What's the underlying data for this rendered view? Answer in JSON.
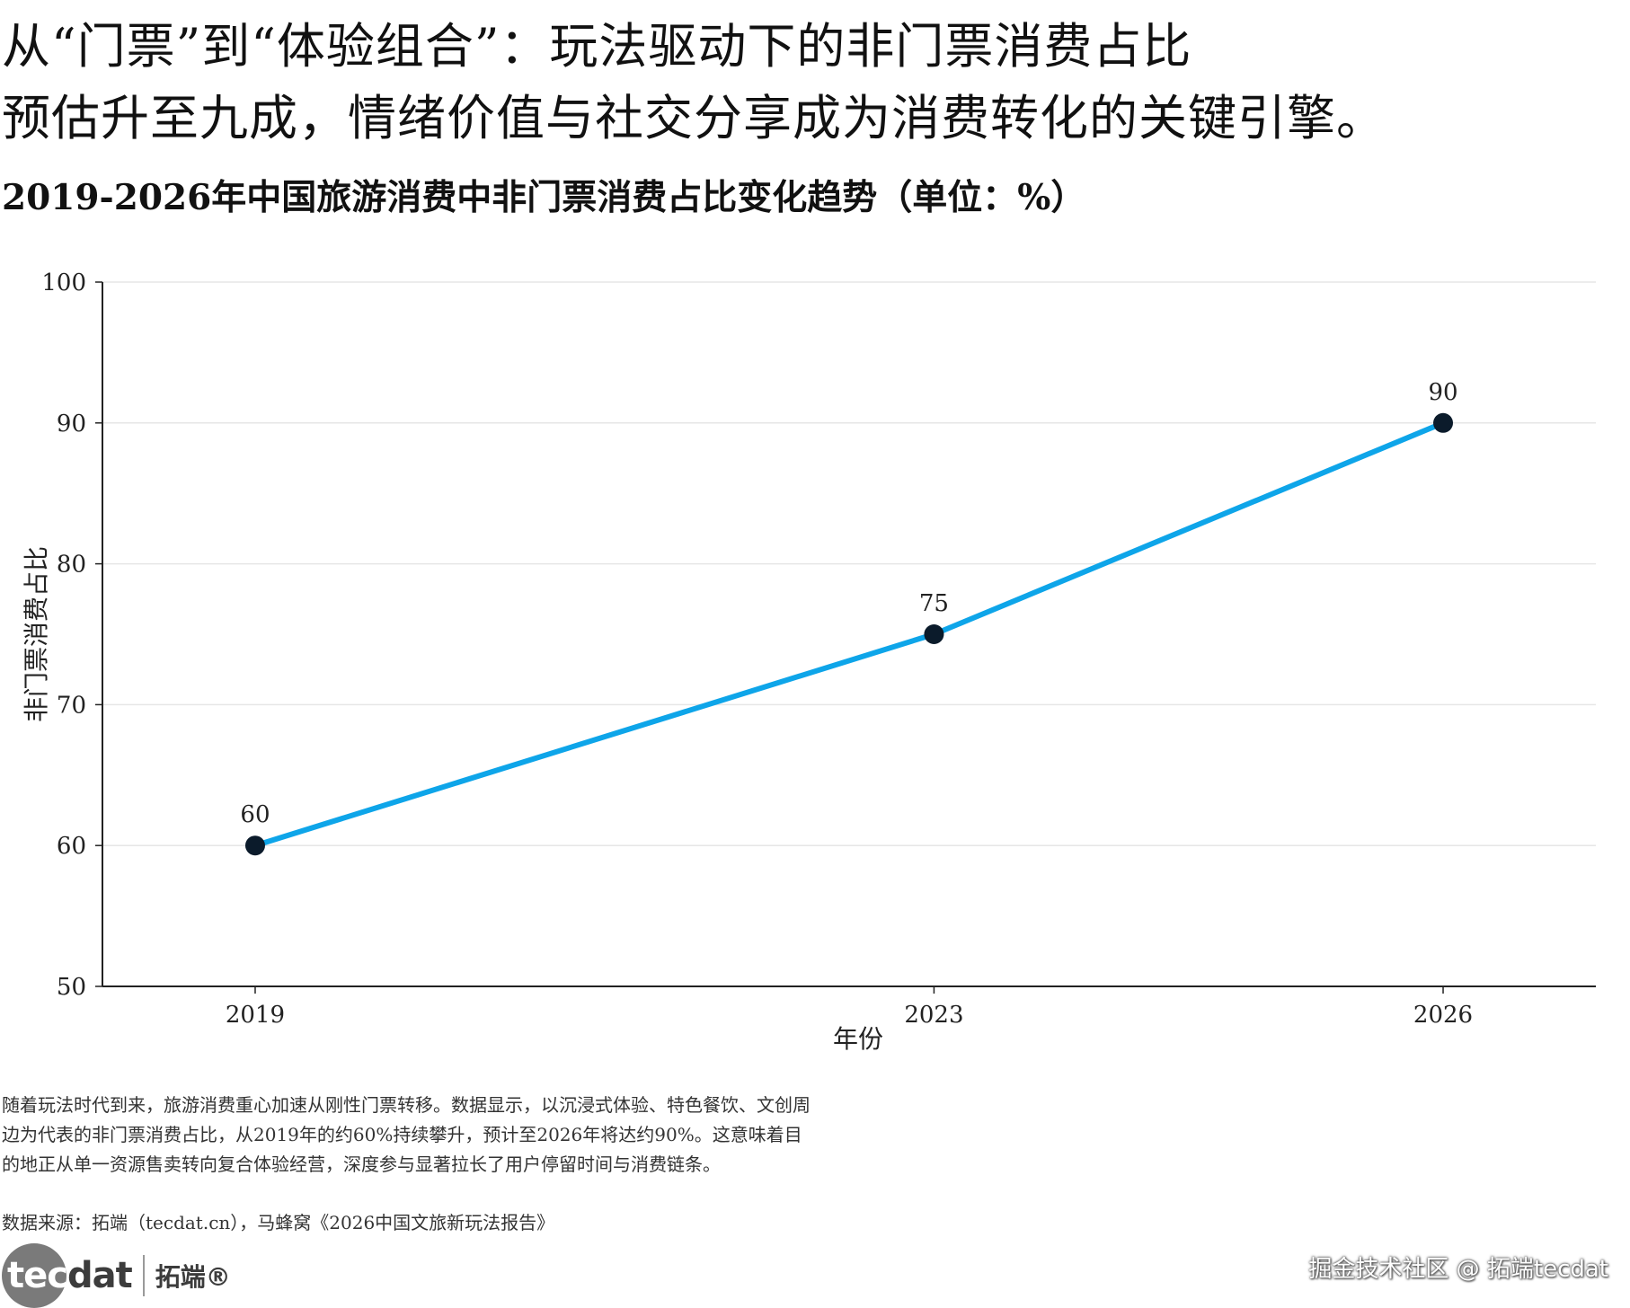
{
  "headline": {
    "line1": "从“门票”到“体验组合”：玩法驱动下的非门票消费占比",
    "line2": "预估升至九成，情绪价值与社交分享成为消费转化的关键引擎。"
  },
  "subtitle": "2019-2026年中国旅游消费中非门票消费占比变化趋势（单位：%）",
  "chart_data": {
    "type": "line",
    "x": [
      "2019",
      "2023",
      "2026"
    ],
    "x_numeric": [
      2019,
      2023,
      2026
    ],
    "series": [
      {
        "name": "",
        "values": [
          60,
          75,
          90
        ],
        "color": "#0ea5e9",
        "marker_color": "#0b1b2b"
      }
    ],
    "data_labels": [
      "60",
      "75",
      "90"
    ],
    "xlabel": "年份",
    "ylabel": "非门票消费占比",
    "ylim": [
      50,
      100
    ],
    "yticks": [
      50,
      60,
      70,
      80,
      90,
      100
    ],
    "xticks": [
      "2019",
      "2023",
      "2026"
    ],
    "grid": true,
    "legend": "none"
  },
  "note": "随着玩法时代到来，旅游消费重心加速从刚性门票转移。数据显示，以沉浸式体验、特色餐饮、文创周边为代表的非门票消费占比，从2019年的约60%持续攀升，预计至2026年将达约90%。这意味着目的地正从单一资源售卖转向复合体验经营，深度参与显著拉长了用户停留时间与消费链条。",
  "source": "数据来源：拓端（tecdat.cn），马蜂窝《2026中国文旅新玩法报告》",
  "logo": {
    "word_part1": "tec",
    "word_part2": "dat",
    "chinese": "拓端®"
  },
  "watermark": "掘金技术社区 @ 拓端tecdat",
  "colors": {
    "line": "#0ea5e9",
    "marker": "#0b1b2b",
    "grid": "#e6e6e6",
    "axis": "#222222"
  }
}
